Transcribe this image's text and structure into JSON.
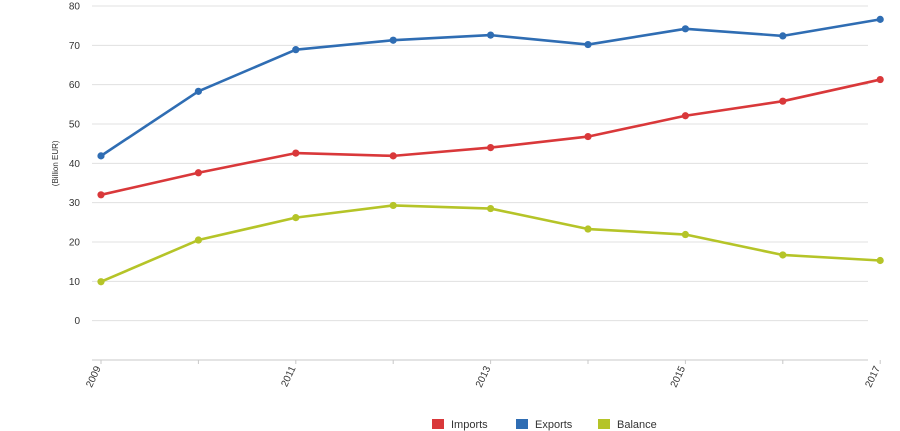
{
  "chart_data": {
    "type": "line",
    "title": "",
    "xlabel": "",
    "ylabel": "(Billion EUR)",
    "x": [
      2009,
      2010,
      2011,
      2012,
      2013,
      2014,
      2015,
      2016,
      2017
    ],
    "x_tick_labels": [
      "2009",
      "2011",
      "2013",
      "2015",
      "2017"
    ],
    "ylim": [
      -10,
      80
    ],
    "y_ticks": [
      0,
      10,
      20,
      30,
      40,
      50,
      60,
      70,
      80
    ],
    "grid": true,
    "legend_position": "bottom",
    "series": [
      {
        "name": "Imports",
        "color": "#d9383a",
        "values": [
          32.0,
          37.6,
          42.6,
          41.9,
          44.0,
          46.8,
          52.1,
          55.8,
          61.3
        ]
      },
      {
        "name": "Exports",
        "color": "#2f6db3",
        "values": [
          41.9,
          58.3,
          68.9,
          71.3,
          72.6,
          70.2,
          74.2,
          72.4,
          76.6
        ]
      },
      {
        "name": "Balance",
        "color": "#b5c428",
        "values": [
          9.9,
          20.5,
          26.2,
          29.3,
          28.5,
          23.3,
          21.9,
          16.7,
          15.3
        ]
      }
    ]
  }
}
